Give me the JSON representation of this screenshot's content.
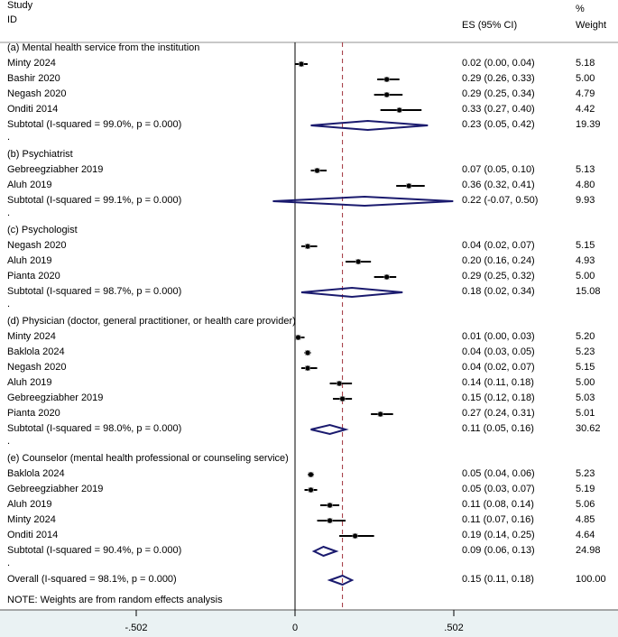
{
  "chart_data": {
    "type": "forest",
    "header": {
      "study_line1": "Study",
      "study_line2": "ID",
      "es": "ES (95% CI)",
      "weight_line1": "%",
      "weight_line2": "Weight"
    },
    "xlim": [
      -0.502,
      0.502
    ],
    "xticks": [
      {
        "value": -0.502,
        "label": "-.502"
      },
      {
        "value": 0,
        "label": "0"
      },
      {
        "value": 0.502,
        "label": ".502"
      }
    ],
    "overall_line": 0.15,
    "colors": {
      "diamond": "#1a1a6e",
      "overall_line": "#a0303a",
      "axis_bg": "#eaf2f3"
    },
    "groups": [
      {
        "label": "(a) Mental health service from the institution",
        "studies": [
          {
            "id": "Minty 2024",
            "es": 0.02,
            "lo": 0.0,
            "hi": 0.04,
            "ci_text": "0.02 (0.00, 0.04)",
            "weight": "5.18"
          },
          {
            "id": "Bashir 2020",
            "es": 0.29,
            "lo": 0.26,
            "hi": 0.33,
            "ci_text": "0.29 (0.26, 0.33)",
            "weight": "5.00"
          },
          {
            "id": "Negash 2020",
            "es": 0.29,
            "lo": 0.25,
            "hi": 0.34,
            "ci_text": "0.29 (0.25, 0.34)",
            "weight": "4.79"
          },
          {
            "id": "Onditi 2014",
            "es": 0.33,
            "lo": 0.27,
            "hi": 0.4,
            "ci_text": "0.33 (0.27, 0.40)",
            "weight": "4.42"
          }
        ],
        "subtotal": {
          "label": "Subtotal  (I-squared = 99.0%, p = 0.000)",
          "es": 0.23,
          "lo": 0.05,
          "hi": 0.42,
          "ci_text": "0.23 (0.05, 0.42)",
          "weight": "19.39"
        }
      },
      {
        "label": "(b) Psychiatrist",
        "studies": [
          {
            "id": "Gebreegziabher 2019",
            "es": 0.07,
            "lo": 0.05,
            "hi": 0.1,
            "ci_text": "0.07 (0.05, 0.10)",
            "weight": "5.13"
          },
          {
            "id": "Aluh 2019",
            "es": 0.36,
            "lo": 0.32,
            "hi": 0.41,
            "ci_text": "0.36 (0.32, 0.41)",
            "weight": "4.80"
          }
        ],
        "subtotal": {
          "label": "Subtotal  (I-squared = 99.1%, p = 0.000)",
          "es": 0.22,
          "lo": -0.07,
          "hi": 0.5,
          "ci_text": "0.22 (-0.07, 0.50)",
          "weight": "9.93"
        }
      },
      {
        "label": "(c) Psychologist",
        "studies": [
          {
            "id": "Negash 2020",
            "es": 0.04,
            "lo": 0.02,
            "hi": 0.07,
            "ci_text": "0.04 (0.02, 0.07)",
            "weight": "5.15"
          },
          {
            "id": "Aluh 2019",
            "es": 0.2,
            "lo": 0.16,
            "hi": 0.24,
            "ci_text": "0.20 (0.16, 0.24)",
            "weight": "4.93"
          },
          {
            "id": "Pianta 2020",
            "es": 0.29,
            "lo": 0.25,
            "hi": 0.32,
            "ci_text": "0.29 (0.25, 0.32)",
            "weight": "5.00"
          }
        ],
        "subtotal": {
          "label": "Subtotal  (I-squared = 98.7%, p = 0.000)",
          "es": 0.18,
          "lo": 0.02,
          "hi": 0.34,
          "ci_text": "0.18 (0.02, 0.34)",
          "weight": "15.08"
        }
      },
      {
        "label": "(d) Physician (doctor, general practitioner, or health care provider)",
        "studies": [
          {
            "id": "Minty 2024",
            "es": 0.01,
            "lo": 0.0,
            "hi": 0.03,
            "ci_text": "0.01 (0.00, 0.03)",
            "weight": "5.20"
          },
          {
            "id": "Baklola 2024",
            "es": 0.04,
            "lo": 0.03,
            "hi": 0.05,
            "ci_text": "0.04 (0.03, 0.05)",
            "weight": "5.23"
          },
          {
            "id": "Negash 2020",
            "es": 0.04,
            "lo": 0.02,
            "hi": 0.07,
            "ci_text": "0.04 (0.02, 0.07)",
            "weight": "5.15"
          },
          {
            "id": "Aluh 2019",
            "es": 0.14,
            "lo": 0.11,
            "hi": 0.18,
            "ci_text": "0.14 (0.11, 0.18)",
            "weight": "5.00"
          },
          {
            "id": "Gebreegziabher 2019",
            "es": 0.15,
            "lo": 0.12,
            "hi": 0.18,
            "ci_text": "0.15 (0.12, 0.18)",
            "weight": "5.03"
          },
          {
            "id": "Pianta 2020",
            "es": 0.27,
            "lo": 0.24,
            "hi": 0.31,
            "ci_text": "0.27 (0.24, 0.31)",
            "weight": "5.01"
          }
        ],
        "subtotal": {
          "label": "Subtotal  (I-squared = 98.0%, p = 0.000)",
          "es": 0.11,
          "lo": 0.05,
          "hi": 0.16,
          "ci_text": "0.11 (0.05, 0.16)",
          "weight": "30.62"
        }
      },
      {
        "label": "(e) Counselor (mental health professional or counseling service)",
        "studies": [
          {
            "id": "Baklola 2024",
            "es": 0.05,
            "lo": 0.04,
            "hi": 0.06,
            "ci_text": "0.05 (0.04, 0.06)",
            "weight": "5.23"
          },
          {
            "id": "Gebreegziabher 2019",
            "es": 0.05,
            "lo": 0.03,
            "hi": 0.07,
            "ci_text": "0.05 (0.03, 0.07)",
            "weight": "5.19"
          },
          {
            "id": "Aluh 2019",
            "es": 0.11,
            "lo": 0.08,
            "hi": 0.14,
            "ci_text": "0.11 (0.08, 0.14)",
            "weight": "5.06"
          },
          {
            "id": "Minty 2024",
            "es": 0.11,
            "lo": 0.07,
            "hi": 0.16,
            "ci_text": "0.11 (0.07, 0.16)",
            "weight": "4.85"
          },
          {
            "id": "Onditi 2014",
            "es": 0.19,
            "lo": 0.14,
            "hi": 0.25,
            "ci_text": "0.19 (0.14, 0.25)",
            "weight": "4.64"
          }
        ],
        "subtotal": {
          "label": "Subtotal  (I-squared = 90.4%, p = 0.000)",
          "es": 0.09,
          "lo": 0.06,
          "hi": 0.13,
          "ci_text": "0.09 (0.06, 0.13)",
          "weight": "24.98"
        }
      }
    ],
    "overall": {
      "label": "Overall  (I-squared = 98.1%, p = 0.000)",
      "es": 0.15,
      "lo": 0.11,
      "hi": 0.18,
      "ci_text": "0.15 (0.11, 0.18)",
      "weight": "100.00"
    },
    "note": "NOTE: Weights are from random effects analysis",
    "separator": "."
  }
}
